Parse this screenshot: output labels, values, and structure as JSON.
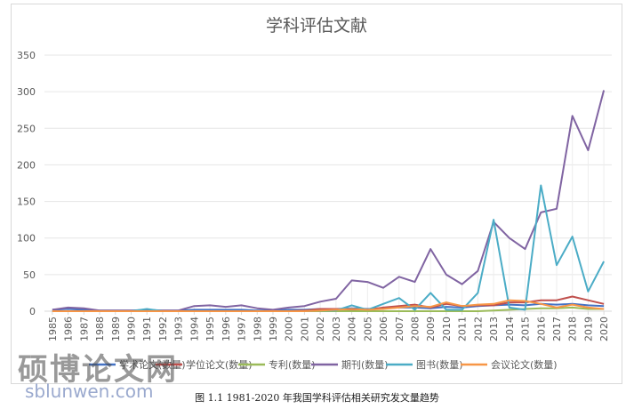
{
  "caption": "图 1.1    1981-2020 年我国学科评估相关研究发文量趋势",
  "watermark": {
    "cn": "硕博论文网",
    "en": "sblunwen.com"
  },
  "chart_data": {
    "type": "line",
    "title": "学科评估文献",
    "x": [
      "1985",
      "1986",
      "1987",
      "1988",
      "1989",
      "1990",
      "1991",
      "1992",
      "1993",
      "1994",
      "1995",
      "1996",
      "1997",
      "1998",
      "1999",
      "2000",
      "2001",
      "2002",
      "2003",
      "2004",
      "2005",
      "2006",
      "2007",
      "2008",
      "2009",
      "2010",
      "2011",
      "2012",
      "2013",
      "2014",
      "2015",
      "2016",
      "2017",
      "2018",
      "2019",
      "2020"
    ],
    "ylim": [
      0,
      350
    ],
    "yticks": [
      0,
      50,
      100,
      150,
      200,
      250,
      300,
      350
    ],
    "grid": true,
    "legend_position": "bottom",
    "series": [
      {
        "name": "学术论文(数量)",
        "color": "#4472c4",
        "values": [
          2,
          3,
          2,
          1,
          1,
          1,
          2,
          1,
          1,
          2,
          2,
          2,
          2,
          1,
          1,
          2,
          2,
          3,
          3,
          4,
          3,
          4,
          5,
          5,
          4,
          6,
          5,
          7,
          8,
          9,
          8,
          10,
          9,
          10,
          8,
          7
        ]
      },
      {
        "name": "学位论文(数量)",
        "color": "#c0504d",
        "values": [
          0,
          0,
          0,
          0,
          0,
          0,
          0,
          0,
          0,
          0,
          0,
          0,
          0,
          0,
          0,
          0,
          1,
          3,
          3,
          2,
          2,
          5,
          7,
          9,
          5,
          10,
          7,
          8,
          8,
          12,
          12,
          15,
          15,
          20,
          15,
          10
        ]
      },
      {
        "name": "专利(数量)",
        "color": "#9bbb59",
        "values": [
          0,
          0,
          0,
          0,
          0,
          0,
          0,
          0,
          0,
          0,
          0,
          0,
          0,
          0,
          0,
          0,
          0,
          0,
          0,
          0,
          0,
          0,
          0,
          0,
          0,
          0,
          0,
          0,
          1,
          2,
          3,
          4,
          4,
          5,
          3,
          3
        ]
      },
      {
        "name": "期刊(数量)",
        "color": "#8064a2",
        "values": [
          2,
          5,
          4,
          1,
          1,
          1,
          1,
          1,
          1,
          7,
          8,
          6,
          8,
          4,
          2,
          5,
          7,
          13,
          17,
          42,
          40,
          32,
          47,
          40,
          85,
          50,
          37,
          55,
          122,
          100,
          85,
          135,
          140,
          267,
          220,
          302
        ]
      },
      {
        "name": "图书(数量)",
        "color": "#4bacc6",
        "values": [
          0,
          0,
          0,
          0,
          0,
          0,
          3,
          0,
          0,
          0,
          0,
          0,
          0,
          0,
          0,
          0,
          0,
          1,
          1,
          8,
          2,
          10,
          18,
          2,
          25,
          2,
          2,
          25,
          125,
          5,
          2,
          172,
          63,
          102,
          27,
          68
        ]
      },
      {
        "name": "会议论文(数量)",
        "color": "#f79646",
        "values": [
          0,
          0,
          0,
          0,
          0,
          0,
          0,
          0,
          0,
          0,
          0,
          0,
          0,
          0,
          0,
          0,
          0,
          1,
          2,
          3,
          2,
          3,
          5,
          7,
          6,
          12,
          7,
          9,
          10,
          15,
          14,
          10,
          5,
          9,
          5,
          3
        ]
      }
    ]
  }
}
